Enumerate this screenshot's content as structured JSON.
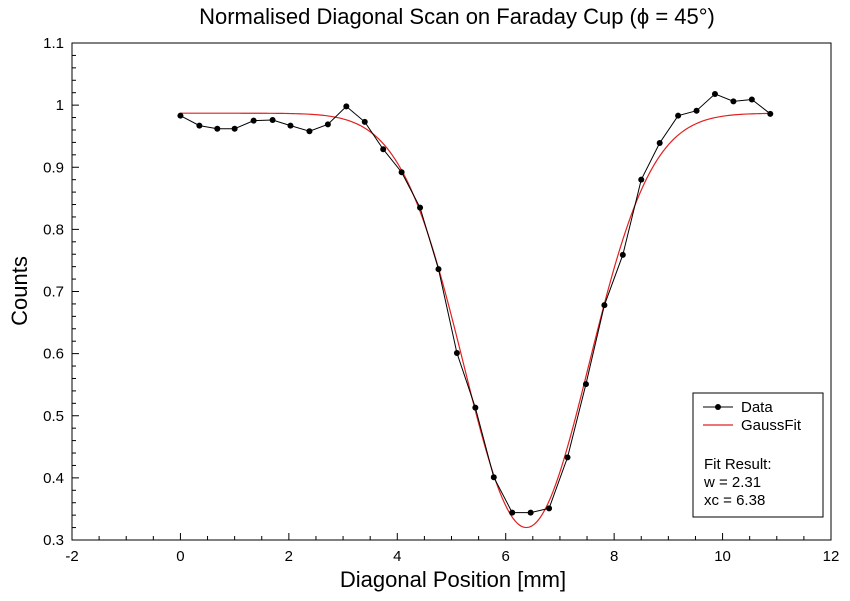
{
  "chart_data": {
    "type": "line",
    "title": "Normalised Diagonal Scan on Faraday Cup (ϕ = 45°)",
    "xlabel": "Diagonal Position [mm]",
    "ylabel": "Counts",
    "xlim": [
      -2,
      12
    ],
    "ylim": [
      0.3,
      1.1
    ],
    "xticks": [
      -2,
      0,
      2,
      4,
      6,
      8,
      10,
      12
    ],
    "xtick_labels": [
      "-2",
      "0",
      "2",
      "4",
      "6",
      "8",
      "10",
      "12"
    ],
    "yticks": [
      0.3,
      0.4,
      0.5,
      0.6,
      0.7,
      0.8,
      0.9,
      1.0,
      1.1
    ],
    "ytick_labels": [
      "0.3",
      "0.4",
      "0.5",
      "0.6",
      "0.7",
      "0.8",
      "0.9",
      "1",
      "1.1"
    ],
    "grid": false,
    "legend_position": "bottom-right",
    "series": [
      {
        "name": "Data",
        "color": "#000000",
        "marker": "circle",
        "x": [
          0.0,
          0.35,
          0.68,
          1.0,
          1.35,
          1.7,
          2.03,
          2.38,
          2.72,
          3.06,
          3.4,
          3.74,
          4.08,
          4.42,
          4.76,
          5.1,
          5.44,
          5.78,
          6.12,
          6.46,
          6.8,
          7.14,
          7.48,
          7.82,
          8.16,
          8.5,
          8.84,
          9.18,
          9.52,
          9.86,
          10.2,
          10.54,
          10.88
        ],
        "y": [
          0.983,
          0.967,
          0.962,
          0.962,
          0.975,
          0.976,
          0.967,
          0.958,
          0.969,
          0.998,
          0.973,
          0.929,
          0.892,
          0.835,
          0.736,
          0.601,
          0.513,
          0.401,
          0.344,
          0.344,
          0.351,
          0.433,
          0.551,
          0.678,
          0.759,
          0.88,
          0.939,
          0.983,
          0.991,
          1.018,
          1.006,
          1.009,
          0.986
        ]
      },
      {
        "name": "GaussFit",
        "color": "#e02020",
        "marker": "none",
        "function": "gaussian_dip",
        "baseline": 0.987,
        "depth": 0.667,
        "xc": 6.38,
        "w": 2.31,
        "x_range": [
          0.0,
          10.88
        ]
      }
    ],
    "annotation": {
      "heading": "Fit Result:",
      "line_w": "w = 2.31",
      "line_xc": "xc = 6.38"
    }
  }
}
